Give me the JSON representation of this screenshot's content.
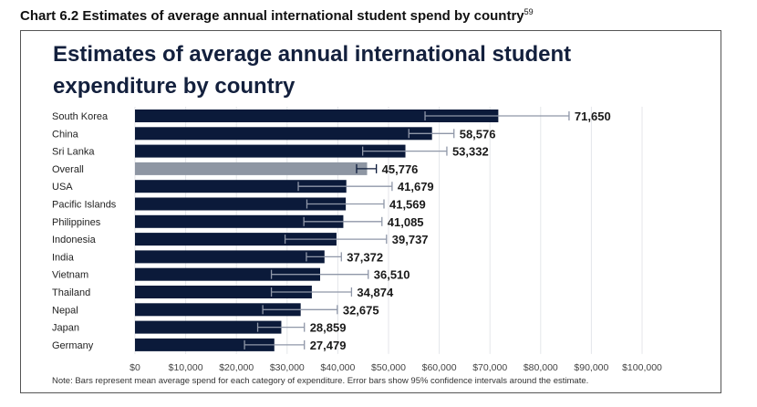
{
  "heading": {
    "text": "Chart 6.2 Estimates of average annual international student spend by country",
    "footnote": "59"
  },
  "chart_data": {
    "type": "bar",
    "orientation": "horizontal",
    "title": "Estimates of average annual international student expenditure by country",
    "categories": [
      "South Korea",
      "China",
      "Sri Lanka",
      "Overall",
      "USA",
      "Pacific Islands",
      "Philippines",
      "Indonesia",
      "India",
      "Vietnam",
      "Thailand",
      "Nepal",
      "Japan",
      "Germany"
    ],
    "values": [
      71650,
      58576,
      53332,
      45776,
      41679,
      41569,
      41085,
      39737,
      37372,
      36510,
      34874,
      32675,
      28859,
      27479
    ],
    "value_labels": [
      "71,650",
      "58,576",
      "53,332",
      "45,776",
      "41,679",
      "41,569",
      "41,085",
      "39,737",
      "37,372",
      "36,510",
      "34,874",
      "32,675",
      "28,859",
      "27,479"
    ],
    "ci_low": [
      57200,
      54000,
      44900,
      43700,
      32200,
      33900,
      33300,
      29600,
      33800,
      26900,
      26900,
      25200,
      24200,
      21600
    ],
    "ci_high": [
      85600,
      62900,
      61500,
      47600,
      50700,
      49100,
      48700,
      49600,
      40700,
      46000,
      42700,
      39900,
      33400,
      33400
    ],
    "highlight": "Overall",
    "xlim": [
      0,
      100000
    ],
    "xticks": [
      "$0",
      "$10,000",
      "$20,000",
      "$30,000",
      "$40,000",
      "$50,000",
      "$60,000",
      "$70,000",
      "$80,000",
      "$90,000",
      "$100,000"
    ],
    "grid": true,
    "colors": {
      "bar": "#0b1a3a",
      "highlight": "#8e96a3",
      "error": "#8f97a8",
      "grid": "#e4e6ea"
    },
    "note": "Note: Bars represent mean average spend for each category of expenditure. Error bars show 95% confidence intervals around the estimate."
  }
}
